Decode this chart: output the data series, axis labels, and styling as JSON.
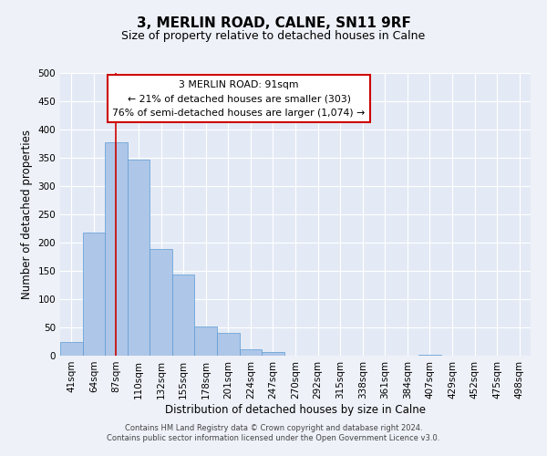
{
  "title": "3, MERLIN ROAD, CALNE, SN11 9RF",
  "subtitle": "Size of property relative to detached houses in Calne",
  "xlabel": "Distribution of detached houses by size in Calne",
  "ylabel": "Number of detached properties",
  "bin_labels": [
    "41sqm",
    "64sqm",
    "87sqm",
    "110sqm",
    "132sqm",
    "155sqm",
    "178sqm",
    "201sqm",
    "224sqm",
    "247sqm",
    "270sqm",
    "292sqm",
    "315sqm",
    "338sqm",
    "361sqm",
    "384sqm",
    "407sqm",
    "429sqm",
    "452sqm",
    "475sqm",
    "498sqm"
  ],
  "bar_heights": [
    25,
    218,
    378,
    347,
    189,
    144,
    52,
    40,
    12,
    7,
    0,
    0,
    0,
    0,
    0,
    0,
    2,
    0,
    0,
    0,
    0
  ],
  "bar_color": "#aec6e8",
  "bar_edge_color": "#5b9bd5",
  "vline_x": 2,
  "vline_color": "#cc0000",
  "annotation_line1": "3 MERLIN ROAD: 91sqm",
  "annotation_line2": "← 21% of detached houses are smaller (303)",
  "annotation_line3": "76% of semi-detached houses are larger (1,074) →",
  "annotation_box_color": "#ffffff",
  "annotation_box_edge": "#cc0000",
  "ylim": [
    0,
    500
  ],
  "yticks": [
    0,
    50,
    100,
    150,
    200,
    250,
    300,
    350,
    400,
    450,
    500
  ],
  "footer1": "Contains HM Land Registry data © Crown copyright and database right 2024.",
  "footer2": "Contains public sector information licensed under the Open Government Licence v3.0.",
  "background_color": "#eef1f8",
  "plot_bg_color": "#e4eaf5",
  "grid_color": "#ffffff",
  "title_fontsize": 11,
  "subtitle_fontsize": 9,
  "axis_label_fontsize": 8.5,
  "tick_fontsize": 7.5,
  "footer_fontsize": 6.0
}
